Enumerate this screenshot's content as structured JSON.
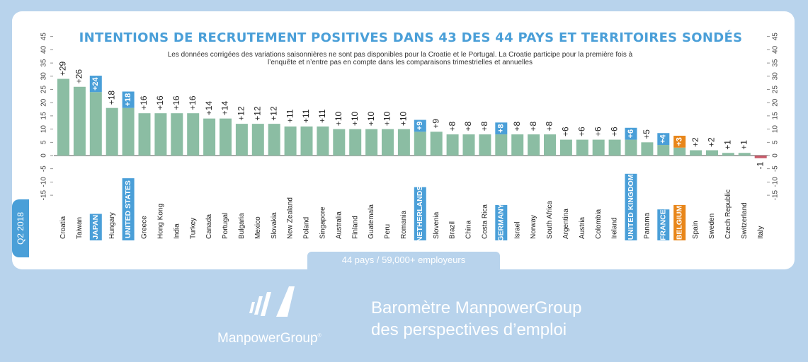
{
  "header": {
    "title": "INTENTIONS DE RECRUTEMENT POSITIVES DANS 43 DES 44 PAYS ET TERRITOIRES SONDÉS",
    "note_line1": "Les données corrigées des variations saisonnières ne sont pas disponibles pour la Croatie et le Portugal. La Croatie participe pour la première fois à",
    "note_line2": "l’enquête et n’entre pas en compte dans les comparaisons trimestrielles et annuelles"
  },
  "quarter_label": "Q2 2018",
  "footer_label": "44 pays / 59,000+ employeurs",
  "brand": {
    "name": "ManpowerGroup",
    "mark": "®"
  },
  "tagline": {
    "line1": "Baromètre ManpowerGroup",
    "line2": "des perspectives d’emploi"
  },
  "colors": {
    "bar": "#8bbda3",
    "bar_negative": "#c75b6a",
    "highlight": "#4a9fd8",
    "highlight_alt": "#e8861a",
    "background": "#b8d3ec"
  },
  "chart_data": {
    "type": "bar",
    "categories": [
      "Croatia",
      "Taiwan",
      "JAPAN",
      "Hungary",
      "UNITED STATES",
      "Greece",
      "Hong Kong",
      "India",
      "Turkey",
      "Canada",
      "Portugal",
      "Bulgaria",
      "Mexico",
      "Slovakia",
      "New Zealand",
      "Poland",
      "Singapore",
      "Australia",
      "Finland",
      "Guatemala",
      "Peru",
      "Romania",
      "NETHERLANDS",
      "Slovenia",
      "Brazil",
      "China",
      "Costa Rica",
      "GERMANY",
      "Israel",
      "Norway",
      "South Africa",
      "Argentina",
      "Austria",
      "Colombia",
      "Ireland",
      "UNITED KINGDOM",
      "Panama",
      "FRANCE",
      "BELGIUM",
      "Spain",
      "Sweden",
      "Czech Republic",
      "Switzerland",
      "Italy"
    ],
    "values": [
      29,
      26,
      24,
      18,
      18,
      16,
      16,
      16,
      16,
      14,
      14,
      12,
      12,
      12,
      11,
      11,
      11,
      10,
      10,
      10,
      10,
      10,
      9,
      9,
      8,
      8,
      8,
      8,
      8,
      8,
      8,
      6,
      6,
      6,
      6,
      6,
      5,
      4,
      3,
      2,
      2,
      1,
      1,
      -1
    ],
    "value_labels": [
      "+29",
      "+26",
      "+24",
      "+18",
      "+18",
      "+16",
      "+16",
      "+16",
      "+16",
      "+14",
      "+14",
      "+12",
      "+12",
      "+12",
      "+11",
      "+11",
      "+11",
      "+10",
      "+10",
      "+10",
      "+10",
      "+10",
      "+9",
      "+9",
      "+8",
      "+8",
      "+8",
      "+8",
      "+8",
      "+8",
      "+8",
      "+6",
      "+6",
      "+6",
      "+6",
      "+6",
      "+5",
      "+4",
      "+3",
      "+2",
      "+2",
      "+1",
      "+1",
      "-1"
    ],
    "highlighted": [
      "JAPAN",
      "UNITED STATES",
      "NETHERLANDS",
      "GERMANY",
      "UNITED KINGDOM",
      "FRANCE",
      "BELGIUM"
    ],
    "highlighted_alt": [
      "BELGIUM"
    ],
    "yticks": [
      45,
      40,
      35,
      30,
      25,
      20,
      15,
      10,
      5,
      0,
      -5,
      -10,
      -15
    ],
    "ytick_labels": [
      "45",
      "40",
      "35",
      "30",
      "25",
      "20",
      "15",
      "10",
      "5",
      "0",
      "-5",
      "-10",
      "-15"
    ],
    "ylim": [
      -15,
      45
    ],
    "grid": false,
    "title": "INTENTIONS DE RECRUTEMENT POSITIVES DANS 43 DES 44 PAYS ET TERRITOIRES SONDÉS"
  }
}
